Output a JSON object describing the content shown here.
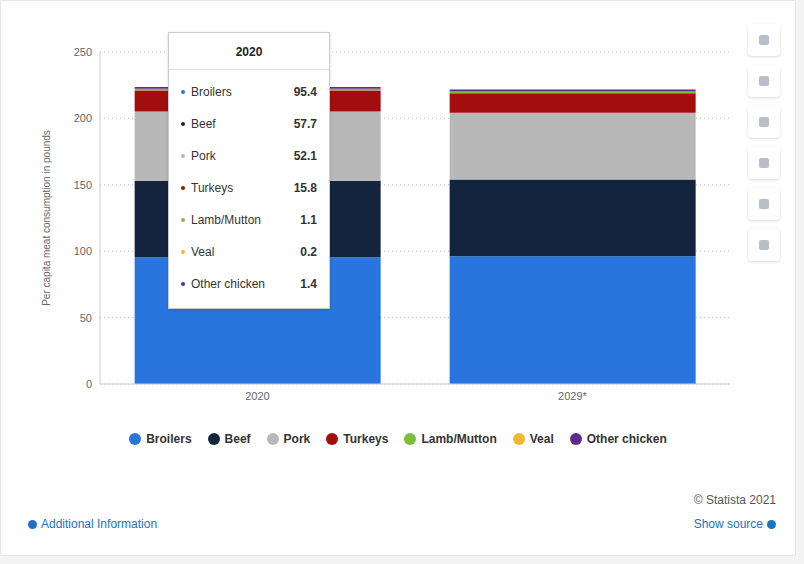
{
  "chart_data": {
    "type": "bar",
    "stacked": true,
    "grid": true,
    "legend": "bottom",
    "y_label": "Per capita meat consumption in pounds",
    "categories": [
      "2020",
      "2029*"
    ],
    "ylim": [
      0,
      250
    ],
    "yticks": [
      0,
      50,
      100,
      150,
      200,
      250
    ],
    "series": [
      {
        "name": "Broilers",
        "color": "#2876dd",
        "values": [
          95.4,
          96.2
        ]
      },
      {
        "name": "Beef",
        "color": "#13253e",
        "values": [
          57.7,
          57.8
        ]
      },
      {
        "name": "Pork",
        "color": "#b8b8b8",
        "values": [
          52.1,
          50.2
        ]
      },
      {
        "name": "Turkeys",
        "color": "#a40d0d",
        "values": [
          15.8,
          14.8
        ]
      },
      {
        "name": "Lamb/Mutton",
        "color": "#7cbd3c",
        "values": [
          1.1,
          1.1
        ]
      },
      {
        "name": "Veal",
        "color": "#f2b92e",
        "values": [
          0.2,
          0.2
        ]
      },
      {
        "name": "Other chicken",
        "color": "#5f2b8c",
        "values": [
          1.4,
          1.4
        ]
      }
    ]
  },
  "footer": {
    "credit": "© Statista 2021",
    "left_link": "Additional Information",
    "right_link": "Show source"
  }
}
